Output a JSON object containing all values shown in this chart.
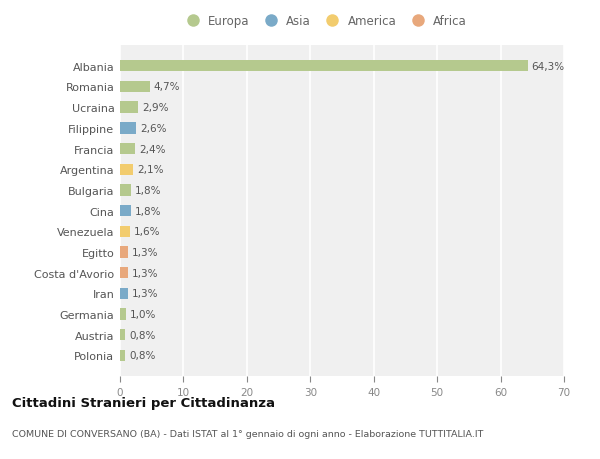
{
  "countries": [
    "Albania",
    "Romania",
    "Ucraina",
    "Filippine",
    "Francia",
    "Argentina",
    "Bulgaria",
    "Cina",
    "Venezuela",
    "Egitto",
    "Costa d'Avorio",
    "Iran",
    "Germania",
    "Austria",
    "Polonia"
  ],
  "values": [
    64.3,
    4.7,
    2.9,
    2.6,
    2.4,
    2.1,
    1.8,
    1.8,
    1.6,
    1.3,
    1.3,
    1.3,
    1.0,
    0.8,
    0.8
  ],
  "labels": [
    "64,3%",
    "4,7%",
    "2,9%",
    "2,6%",
    "2,4%",
    "2,1%",
    "1,8%",
    "1,8%",
    "1,6%",
    "1,3%",
    "1,3%",
    "1,3%",
    "1,0%",
    "0,8%",
    "0,8%"
  ],
  "continents": [
    "Europa",
    "Europa",
    "Europa",
    "Asia",
    "Europa",
    "America",
    "Europa",
    "Asia",
    "America",
    "Africa",
    "Africa",
    "Asia",
    "Europa",
    "Europa",
    "Europa"
  ],
  "colors": {
    "Europa": "#b5c98e",
    "Asia": "#7aaac8",
    "America": "#f2cc6e",
    "Africa": "#e8a87c"
  },
  "xlim": [
    0,
    70
  ],
  "xticks": [
    0,
    10,
    20,
    30,
    40,
    50,
    60,
    70
  ],
  "title": "Cittadini Stranieri per Cittadinanza",
  "subtitle": "COMUNE DI CONVERSANO (BA) - Dati ISTAT al 1° gennaio di ogni anno - Elaborazione TUTTITALIA.IT",
  "bg_top": "#ffffff",
  "bg_chart": "#f0f0f0",
  "grid_color": "#ffffff",
  "bar_height": 0.55,
  "legend_order": [
    "Europa",
    "Asia",
    "America",
    "Africa"
  ]
}
